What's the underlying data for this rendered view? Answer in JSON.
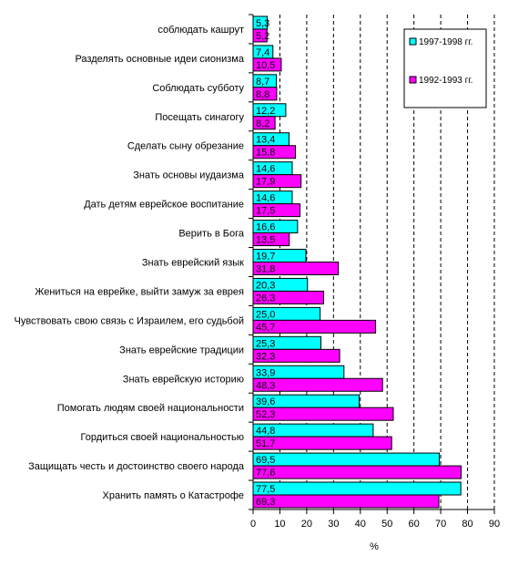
{
  "chart_data": {
    "type": "bar",
    "orientation": "horizontal",
    "categories": [
      "соблюдать кашрут",
      "Разделять основные идеи сионизма",
      "Соблюдать субботу",
      "Посещать синагогу",
      "Сделать сыну обрезание",
      "Знать основы иудаизма",
      "Дать детям еврейское воспитание",
      "Верить  в Бога",
      "Знать еврейский язык",
      "Жениться на еврейке, выйти замуж за еврея",
      "Чувствовать свою связь с Израилем, его судьбой",
      "Знать еврейские традиции",
      "Знать еврейскую историю",
      "Помогать людям своей национальности",
      "Гордиться своей национальностью",
      "Защищать честь и достоинство своего народа",
      "Хранить память о Катастрофе"
    ],
    "series": [
      {
        "name": "1997-1998 гг.",
        "color": "#00ffff",
        "values": [
          5.3,
          7.4,
          8.7,
          12.2,
          13.4,
          14.6,
          14.6,
          16.6,
          19.7,
          20.3,
          25.0,
          25.3,
          33.9,
          39.6,
          44.8,
          69.5,
          77.5
        ],
        "labels": [
          "5,3",
          "7,4",
          "8,7",
          "12,2",
          "13,4",
          "14,6",
          "14,6",
          "16,6",
          "19,7",
          "20,3",
          "25,0",
          "25,3",
          "33,9",
          "39,6",
          "44,8",
          "69,5",
          "77,5"
        ]
      },
      {
        "name": "1992-1993 гг.",
        "color": "#ff00ff",
        "values": [
          5.2,
          10.5,
          8.8,
          8.2,
          15.8,
          17.9,
          17.5,
          13.5,
          31.8,
          26.3,
          45.7,
          32.3,
          48.3,
          52.3,
          51.7,
          77.6,
          69.3
        ],
        "labels": [
          "5,2",
          "10,5",
          "8,8",
          "8,2",
          "15,8",
          "17,9",
          "17,5",
          "13,5",
          "31,8",
          "26,3",
          "45,7",
          "32,3",
          "48,3",
          "52,3",
          "51,7",
          "77,6",
          "69,3"
        ]
      }
    ],
    "xlim": [
      0,
      90
    ],
    "xticks": [
      0,
      10,
      20,
      30,
      40,
      50,
      60,
      70,
      80,
      90
    ],
    "xlabel": "%",
    "grid": "vertical dashed",
    "legend_position": "top-right"
  }
}
